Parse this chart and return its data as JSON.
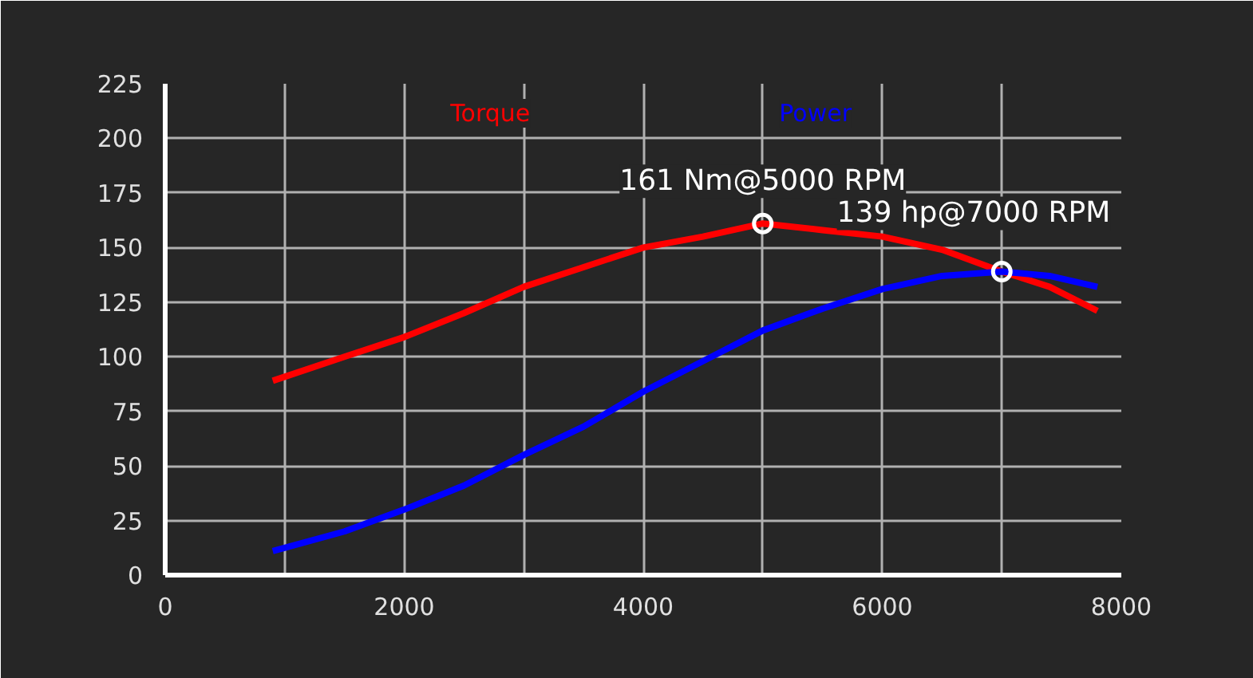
{
  "chart_data": {
    "type": "line",
    "x": [
      900,
      1500,
      2000,
      2500,
      3000,
      3500,
      4000,
      4500,
      5000,
      5500,
      6000,
      6500,
      7000,
      7400,
      7800
    ],
    "series": [
      {
        "name": "Torque",
        "color": "#ff0000",
        "values": [
          89,
          100,
          109,
          120,
          132,
          141,
          150,
          155,
          161,
          158,
          155,
          149,
          139,
          132,
          121
        ]
      },
      {
        "name": "Power",
        "color": "#0000ff",
        "values": [
          11,
          20,
          30,
          41,
          55,
          68,
          84,
          98,
          112,
          122,
          131,
          137,
          139,
          137,
          132
        ]
      }
    ],
    "xlim": [
      0,
      8000
    ],
    "xticks": [
      0,
      {
        "value": 1000,
        "label": null
      },
      2000,
      {
        "value": 3000,
        "label": null
      },
      4000,
      {
        "value": 5000,
        "label": null
      },
      6000,
      {
        "value": 7000,
        "label": null
      },
      8000
    ],
    "ylim": [
      0,
      225
    ],
    "yticks": [
      0,
      25,
      50,
      75,
      100,
      125,
      150,
      175,
      200,
      225
    ],
    "grid": true,
    "legend": "top",
    "annotations": [
      {
        "text": "161 Nm@5000 RPM",
        "x": 5000,
        "y": 161
      },
      {
        "text": "139 hp@7000 RPM",
        "x": 7000,
        "y": 139
      }
    ]
  }
}
